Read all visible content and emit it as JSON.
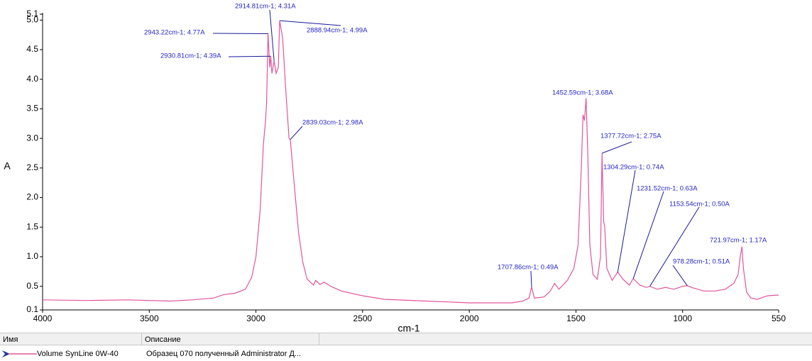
{
  "chart_data": {
    "type": "line",
    "xlabel": "cm-1",
    "ylabel": "A",
    "xlim": [
      4000,
      550
    ],
    "xticks": [
      4000,
      3500,
      3000,
      2500,
      2000,
      1500,
      1000,
      550
    ],
    "ylim": [
      0.1,
      5.1
    ],
    "yticks": [
      0.1,
      0.5,
      {
        "value": 1,
        "label": "1.0"
      },
      1.5,
      {
        "value": 2,
        "label": "2.0"
      },
      2.5,
      {
        "value": 3,
        "label": "3.0"
      },
      3.5,
      {
        "value": 4,
        "label": "4.0"
      },
      4.5,
      {
        "value": 5,
        "label": "5.0"
      },
      5.1
    ],
    "x": [
      4000,
      3800,
      3600,
      3400,
      3300,
      3200,
      3150,
      3100,
      3050,
      3020,
      3000,
      2980,
      2965,
      2955,
      2950,
      2943.22,
      2935,
      2930.81,
      2925,
      2914.81,
      2905,
      2895,
      2888.94,
      2875,
      2860,
      2845,
      2839.03,
      2820,
      2800,
      2780,
      2760,
      2730,
      2720,
      2700,
      2680,
      2650,
      2600,
      2500,
      2400,
      2200,
      2000,
      1800,
      1750,
      1720,
      1707.86,
      1695,
      1650,
      1620,
      1600,
      1580,
      1540,
      1510,
      1490,
      1475,
      1467,
      1460,
      1452.59,
      1445,
      1435,
      1420,
      1400,
      1385,
      1377.72,
      1370,
      1365,
      1355,
      1330,
      1304.29,
      1280,
      1250,
      1231.52,
      1200,
      1170,
      1153.54,
      1120,
      1080,
      1040,
      1000,
      978.28,
      950,
      900,
      850,
      800,
      760,
      740,
      730,
      721.97,
      715,
      700,
      680,
      650,
      620,
      600,
      560,
      550
    ],
    "series": [
      {
        "name": "Volume SynLine 0W-40",
        "color": "#e0569a",
        "values": [
          0.27,
          0.26,
          0.27,
          0.25,
          0.27,
          0.3,
          0.36,
          0.38,
          0.45,
          0.65,
          1.0,
          1.8,
          2.9,
          3.3,
          3.6,
          4.77,
          4.2,
          4.39,
          4.1,
          4.31,
          4.1,
          4.2,
          4.99,
          4.7,
          3.8,
          3.0,
          2.98,
          2.2,
          1.4,
          0.9,
          0.62,
          0.52,
          0.6,
          0.53,
          0.57,
          0.5,
          0.42,
          0.34,
          0.28,
          0.25,
          0.22,
          0.22,
          0.25,
          0.3,
          0.49,
          0.3,
          0.32,
          0.42,
          0.55,
          0.45,
          0.6,
          0.8,
          1.2,
          2.5,
          3.4,
          3.3,
          3.68,
          2.8,
          1.2,
          0.7,
          0.62,
          1.0,
          2.75,
          1.6,
          1.5,
          0.8,
          0.6,
          0.74,
          0.62,
          0.52,
          0.63,
          0.52,
          0.48,
          0.5,
          0.45,
          0.48,
          0.45,
          0.5,
          0.51,
          0.47,
          0.42,
          0.42,
          0.45,
          0.55,
          0.7,
          1.0,
          1.17,
          0.8,
          0.4,
          0.3,
          0.28,
          0.32,
          0.34,
          0.35,
          0.35
        ]
      }
    ],
    "annotations": [
      {
        "x": 2914.81,
        "y": 4.31,
        "label": "2914.81cm-1; 4.31A"
      },
      {
        "x": 2943.22,
        "y": 4.77,
        "label": "2943.22cm-1; 4.77A"
      },
      {
        "x": 2930.81,
        "y": 4.39,
        "label": "2930.81cm-1; 4.39A"
      },
      {
        "x": 2888.94,
        "y": 4.99,
        "label": "2888.94cm-1; 4.99A"
      },
      {
        "x": 2839.03,
        "y": 2.98,
        "label": "2839.03cm-1; 2.98A"
      },
      {
        "x": 1452.59,
        "y": 3.68,
        "label": "1452.59cm-1; 3.68A"
      },
      {
        "x": 1377.72,
        "y": 2.75,
        "label": "1377.72cm-1; 2.75A"
      },
      {
        "x": 1304.29,
        "y": 0.74,
        "label": "1304.29cm-1; 0.74A"
      },
      {
        "x": 1231.52,
        "y": 0.63,
        "label": "1231.52cm-1; 0.63A"
      },
      {
        "x": 1153.54,
        "y": 0.5,
        "label": "1153.54cm-1; 0.50A"
      },
      {
        "x": 978.28,
        "y": 0.51,
        "label": "978.28cm-1; 0.51A"
      },
      {
        "x": 721.97,
        "y": 1.17,
        "label": "721.97cm-1; 1.17A"
      },
      {
        "x": 1707.86,
        "y": 0.49,
        "label": "1707.86cm-1; 0.49A"
      }
    ]
  },
  "table": {
    "headers": [
      "Имя",
      "Описание"
    ],
    "description": "Образец 070 полученный Administrator Д..."
  }
}
